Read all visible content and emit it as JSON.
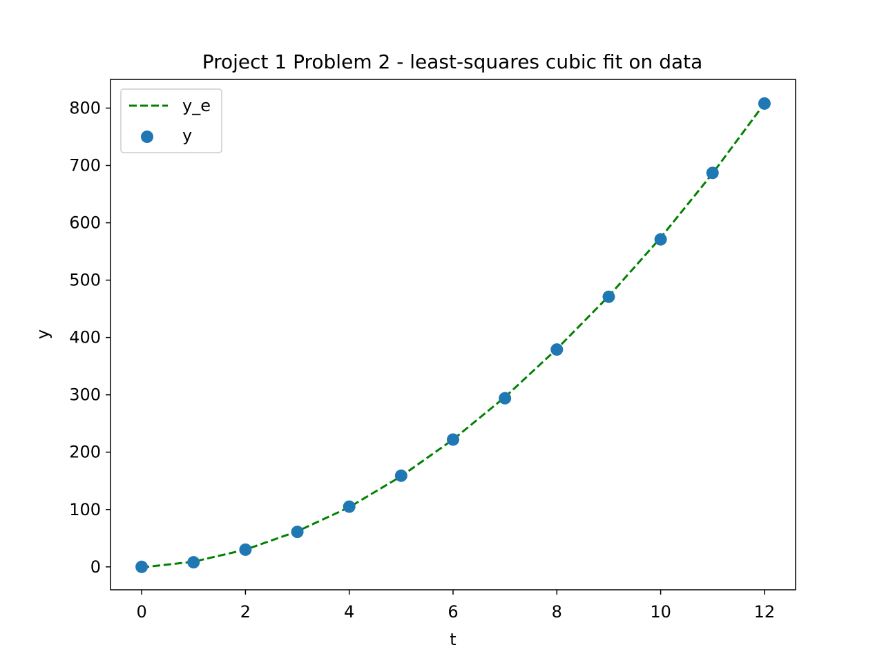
{
  "chart_data": {
    "type": "line",
    "title": "Project 1 Problem 2 - least-squares cubic fit on data",
    "xlabel": "t",
    "ylabel": "y",
    "xlim": [
      -0.6,
      12.6
    ],
    "ylim": [
      -40,
      850
    ],
    "xticks": [
      0,
      2,
      4,
      6,
      8,
      10,
      12
    ],
    "yticks": [
      0,
      100,
      200,
      300,
      400,
      500,
      600,
      700,
      800
    ],
    "grid": false,
    "legend_position": "top-left",
    "x": [
      0,
      1,
      2,
      3,
      4,
      5,
      6,
      7,
      8,
      9,
      10,
      11,
      12
    ],
    "series": [
      {
        "name": "y_e",
        "kind": "line",
        "style": "dashed",
        "color": "#008000",
        "values": [
          -1,
          9,
          30,
          62,
          104,
          158,
          222,
          296,
          380,
          472,
          574,
          686,
          808
        ]
      },
      {
        "name": "y",
        "kind": "scatter",
        "color": "#1f77b4",
        "values": [
          0,
          8,
          30,
          61,
          105,
          159,
          222,
          294,
          379,
          471,
          571,
          687,
          808
        ]
      }
    ]
  }
}
